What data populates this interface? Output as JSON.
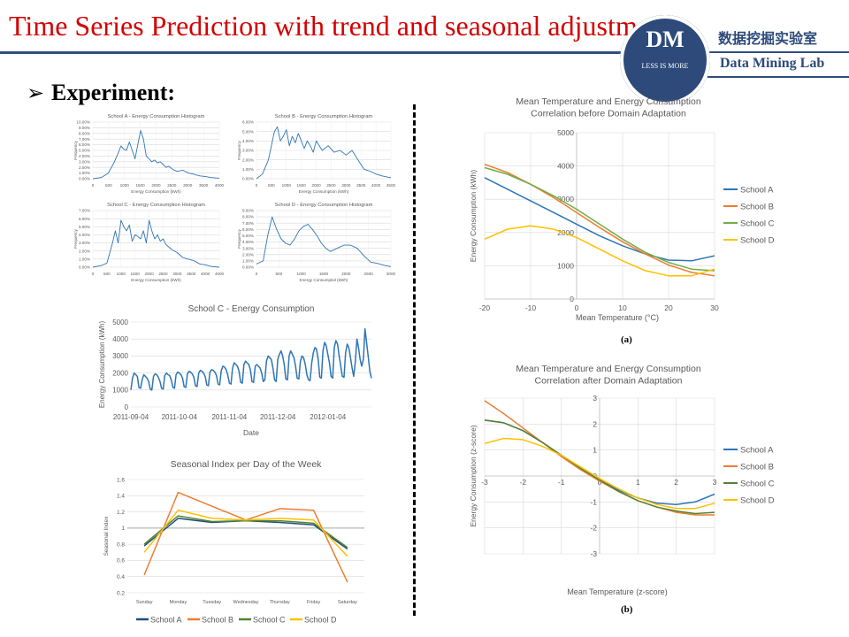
{
  "header": {
    "title": "Time Series Prediction with trend and seasonal adjustment",
    "logo_text": "DM",
    "logo_tagline": "LESS IS MORE",
    "lab_name_cn": "数据挖掘实验室",
    "lab_name_en": "Data Mining Lab"
  },
  "bullet": {
    "arrow": "➢",
    "label": "Experiment:"
  },
  "captions": {
    "a": "(a)",
    "b": "(b)"
  },
  "colors": {
    "title": "#d40000",
    "navy": "#2d4a7a",
    "blue": "#2e75b6",
    "orange": "#ed7d31",
    "green": "#70ad47",
    "yellow": "#ffc000",
    "darkblue": "#1f4e79",
    "darkgreen": "#548235"
  },
  "chart_data": [
    {
      "id": "hist-a",
      "type": "line",
      "title": "School A - Energy Consumption Histogram",
      "xlabel": "Energy Consumption (kWh)",
      "ylabel": "Frequency",
      "xlim": [
        0,
        4500
      ],
      "ylim": [
        0,
        0.1
      ],
      "x_ticks": [
        "0",
        "500",
        "1000",
        "1500",
        "2000",
        "2500",
        "3000",
        "3500",
        "4000"
      ],
      "y_ticks": [
        "0.00%",
        "1.00%",
        "2.00%",
        "3.00%",
        "4.00%",
        "5.00%",
        "6.00%",
        "7.00%",
        "8.00%",
        "9.00%",
        "10.00%"
      ],
      "x": [
        0,
        300,
        550,
        750,
        900,
        1000,
        1100,
        1200,
        1300,
        1400,
        1500,
        1600,
        1700,
        1800,
        1900,
        2000,
        2100,
        2200,
        2300,
        2400,
        2500,
        2600,
        2700,
        2800,
        2900,
        3000,
        3200,
        3400,
        3600,
        3800,
        4000,
        4200,
        4500
      ],
      "series": [
        {
          "values": [
            0,
            0.002,
            0.01,
            0.028,
            0.045,
            0.058,
            0.052,
            0.05,
            0.065,
            0.05,
            0.035,
            0.06,
            0.085,
            0.07,
            0.04,
            0.035,
            0.03,
            0.033,
            0.028,
            0.03,
            0.025,
            0.02,
            0.022,
            0.018,
            0.015,
            0.013,
            0.015,
            0.01,
            0.008,
            0.005,
            0.004,
            0.002,
            0.001
          ],
          "color": "#2e75b6"
        }
      ]
    },
    {
      "id": "hist-b",
      "type": "line",
      "title": "School B - Energy Consumption Histogram",
      "xlabel": "Energy Consumption (kWh)",
      "ylabel": "Frequency",
      "xlim": [
        0,
        4500
      ],
      "ylim": [
        0,
        0.06
      ],
      "x_ticks": [
        "0",
        "500",
        "1000",
        "1500",
        "2000",
        "2500",
        "3000",
        "3500",
        "4000",
        "4500"
      ],
      "y_ticks": [
        "0.00%",
        "1.00%",
        "2.00%",
        "3.00%",
        "4.00%",
        "5.00%",
        "6.00%"
      ],
      "x": [
        0,
        200,
        400,
        500,
        600,
        700,
        800,
        900,
        1000,
        1100,
        1200,
        1300,
        1400,
        1500,
        1600,
        1700,
        1800,
        1900,
        2000,
        2200,
        2400,
        2600,
        2800,
        3000,
        3200,
        3400,
        3600,
        3800,
        4000,
        4200,
        4500
      ],
      "series": [
        {
          "values": [
            0,
            0.005,
            0.02,
            0.035,
            0.05,
            0.055,
            0.04,
            0.045,
            0.052,
            0.035,
            0.045,
            0.038,
            0.048,
            0.04,
            0.032,
            0.04,
            0.035,
            0.028,
            0.04,
            0.03,
            0.035,
            0.028,
            0.03,
            0.025,
            0.03,
            0.02,
            0.01,
            0.008,
            0.005,
            0.003,
            0.001
          ],
          "color": "#2e75b6"
        }
      ]
    },
    {
      "id": "hist-c",
      "type": "line",
      "title": "School C - Energy Consumption Histogram",
      "xlabel": "Energy Consumption (kWh)",
      "ylabel": "Frequency",
      "xlim": [
        0,
        4500
      ],
      "ylim": [
        0,
        0.07
      ],
      "x_ticks": [
        "0",
        "500",
        "1000",
        "1500",
        "2000",
        "2500",
        "3000",
        "3500",
        "4000",
        "4500"
      ],
      "y_ticks": [
        "0.00%",
        "1.00%",
        "2.00%",
        "3.00%",
        "4.00%",
        "5.00%",
        "6.00%",
        "7.00%"
      ],
      "x": [
        0,
        300,
        500,
        700,
        800,
        900,
        1000,
        1100,
        1200,
        1300,
        1400,
        1500,
        1600,
        1700,
        1800,
        1900,
        2000,
        2100,
        2200,
        2300,
        2400,
        2500,
        2600,
        2800,
        3000,
        3200,
        3400,
        3600,
        3800,
        4000,
        4200,
        4500
      ],
      "series": [
        {
          "values": [
            0,
            0.002,
            0.005,
            0.03,
            0.045,
            0.03,
            0.058,
            0.05,
            0.045,
            0.052,
            0.032,
            0.04,
            0.038,
            0.035,
            0.045,
            0.03,
            0.058,
            0.045,
            0.035,
            0.04,
            0.032,
            0.035,
            0.028,
            0.022,
            0.018,
            0.012,
            0.01,
            0.008,
            0.004,
            0.003,
            0.001,
            0.0
          ],
          "color": "#2e75b6"
        }
      ]
    },
    {
      "id": "hist-d",
      "type": "line",
      "title": "School D - Energy Consumption Histogram",
      "xlabel": "Energy Consumptiol (kWh)",
      "ylabel": "Frequency",
      "xlim": [
        0,
        3000
      ],
      "ylim": [
        0,
        0.09
      ],
      "x_ticks": [
        "0",
        "500",
        "1000",
        "1500",
        "2000",
        "2500",
        "3000"
      ],
      "y_ticks": [
        "0.00%",
        "1.00%",
        "2.00%",
        "3.00%",
        "4.00%",
        "5.00%",
        "6.00%",
        "7.00%",
        "8.00%",
        "9.00%"
      ],
      "x": [
        0,
        150,
        250,
        350,
        450,
        550,
        650,
        750,
        850,
        950,
        1050,
        1150,
        1250,
        1350,
        1450,
        1550,
        1650,
        1800,
        1950,
        2100,
        2250,
        2400,
        2550,
        2700,
        2850,
        3000
      ],
      "series": [
        {
          "values": [
            0.005,
            0.01,
            0.05,
            0.08,
            0.06,
            0.045,
            0.038,
            0.035,
            0.045,
            0.058,
            0.065,
            0.068,
            0.06,
            0.05,
            0.038,
            0.03,
            0.025,
            0.03,
            0.035,
            0.035,
            0.03,
            0.018,
            0.008,
            0.006,
            0.003,
            0.001
          ],
          "color": "#2e75b6"
        }
      ]
    },
    {
      "id": "ts-c",
      "type": "line",
      "title": "School C - Energy Consumption",
      "xlabel": "Date",
      "ylabel": "Energy Consumption (kWh)",
      "ylim": [
        0,
        5000
      ],
      "y_ticks": [
        "0",
        "1000",
        "2000",
        "3000",
        "4000",
        "5000"
      ],
      "x_ticks": [
        "2011-09-04",
        "2011-10-04",
        "2011-11-04",
        "2011-12-04",
        "2012-01-04"
      ],
      "x_start": "2011-09-04",
      "series": [
        {
          "name": "",
          "color": "#2e75b6",
          "values": [
            1000,
            1700,
            2000,
            1900,
            1800,
            1150,
            1100,
            1600,
            1900,
            1800,
            1700,
            1500,
            1050,
            1000,
            1800,
            1950,
            1900,
            1750,
            1500,
            1100,
            1050,
            1850,
            2000,
            1900,
            1850,
            1600,
            1150,
            1100,
            1900,
            2050,
            2000,
            1900,
            1700,
            1200,
            1150,
            1950,
            2100,
            2050,
            1950,
            1750,
            1250,
            1200,
            2000,
            2150,
            2100,
            2000,
            1800,
            1300,
            1250,
            2050,
            2200,
            2150,
            2050,
            1850,
            1350,
            1300,
            2150,
            2400,
            2350,
            2200,
            1900,
            1400,
            1350,
            2300,
            2600,
            2500,
            2400,
            2100,
            1450,
            1400,
            2500,
            2700,
            2600,
            2500,
            2200,
            1500,
            1450,
            2400,
            2500,
            2400,
            2300,
            2000,
            1500,
            1600,
            2700,
            3000,
            2900,
            2800,
            2300,
            1600,
            1500,
            2800,
            3100,
            3300,
            3000,
            2500,
            1650,
            1600,
            3000,
            3300,
            3100,
            2900,
            2400,
            1700,
            1650,
            2700,
            3000,
            2900,
            2500,
            1900,
            1600,
            1550,
            2600,
            3200,
            3500,
            3400,
            2800,
            1750,
            1700,
            3300,
            3800,
            3600,
            3100,
            2600,
            1800,
            1700,
            3500,
            3900,
            3700,
            3000,
            2400,
            1800,
            1750,
            3200,
            3700,
            3500,
            2900,
            2300,
            1800,
            2600,
            4000,
            3500,
            2800,
            2400,
            2800,
            4600,
            3800,
            3000,
            2100,
            1700
          ]
        }
      ]
    },
    {
      "id": "seasonal",
      "type": "line",
      "title": "Seasonal Index per Day of the Week",
      "xlabel": "",
      "ylabel": "Seasonal Index",
      "categories": [
        "Sunday",
        "Monday",
        "Tuesday",
        "Wednesday",
        "Thursday",
        "Friday",
        "Saturday"
      ],
      "ylim": [
        0.2,
        1.6
      ],
      "y_ticks": [
        "0.2",
        "0.4",
        "0.6",
        "0.8",
        "1",
        "1.2",
        "1.4",
        "1.6"
      ],
      "reference_line": 1,
      "series": [
        {
          "name": "School A",
          "color": "#1f4e79",
          "values": [
            0.78,
            1.12,
            1.07,
            1.09,
            1.07,
            1.04,
            0.74
          ]
        },
        {
          "name": "School B",
          "color": "#ed7d31",
          "values": [
            0.42,
            1.44,
            1.27,
            1.1,
            1.24,
            1.22,
            0.33
          ]
        },
        {
          "name": "School C",
          "color": "#548235",
          "values": [
            0.8,
            1.15,
            1.08,
            1.09,
            1.09,
            1.06,
            0.76
          ]
        },
        {
          "name": "School D",
          "color": "#ffc000",
          "values": [
            0.7,
            1.22,
            1.12,
            1.1,
            1.12,
            1.1,
            0.65
          ]
        }
      ]
    },
    {
      "id": "corr-before",
      "type": "line",
      "title": "Mean Temperature and Energy Consumption Correlation before Domain Adaptation",
      "title_lines": [
        "Mean Temperature and Energy Consumption",
        "Correlation before Domain Adaptation"
      ],
      "xlabel": "Mean Temperature (°C)",
      "ylabel": "Energy Consumption (kWh)",
      "xlim": [
        -20,
        30
      ],
      "ylim": [
        0,
        5000
      ],
      "x_ticks": [
        "-20",
        "-10",
        "0",
        "10",
        "20",
        "30"
      ],
      "y_ticks": [
        "0",
        "1000",
        "2000",
        "3000",
        "4000",
        "5000"
      ],
      "legend": "right",
      "x": [
        -20,
        -15,
        -10,
        -5,
        0,
        5,
        10,
        15,
        20,
        25,
        30
      ],
      "series": [
        {
          "name": "School A",
          "color": "#2e75b6",
          "values": [
            3650,
            3300,
            2950,
            2600,
            2250,
            1900,
            1600,
            1350,
            1170,
            1150,
            1300
          ]
        },
        {
          "name": "School B",
          "color": "#ed7d31",
          "values": [
            4050,
            3800,
            3450,
            3050,
            2600,
            2150,
            1720,
            1350,
            1020,
            800,
            700
          ]
        },
        {
          "name": "School C",
          "color": "#70ad47",
          "values": [
            3950,
            3750,
            3450,
            3100,
            2700,
            2250,
            1800,
            1400,
            1100,
            900,
            850
          ]
        },
        {
          "name": "School D",
          "color": "#ffc000",
          "values": [
            1800,
            2100,
            2200,
            2100,
            1850,
            1500,
            1150,
            850,
            700,
            700,
            900
          ]
        }
      ]
    },
    {
      "id": "corr-after",
      "type": "line",
      "title": "Mean Temperature and Energy Consumption Correlation after Domain Adaptation",
      "title_lines": [
        "Mean Temperature and Energy Consumption",
        "Correlation after Domain Adaptation"
      ],
      "xlabel": "Mean Temperature (z-score)",
      "ylabel": "Energy Consumption (z-score)",
      "xlim": [
        -3,
        3
      ],
      "ylim": [
        -3,
        3
      ],
      "x_ticks": [
        "-3",
        "-2",
        "-1",
        "0",
        "1",
        "2",
        "3"
      ],
      "y_ticks": [
        "-3",
        "-2",
        "-1",
        "0",
        "1",
        "2",
        "3"
      ],
      "legend": "right",
      "x": [
        -3,
        -2.5,
        -2,
        -1.5,
        -1,
        -0.5,
        0,
        0.5,
        1,
        1.5,
        2,
        2.5,
        3
      ],
      "series": [
        {
          "name": "School A",
          "color": "#2e75b6",
          "values": [
            2.15,
            2.05,
            1.75,
            1.3,
            0.8,
            0.3,
            -0.15,
            -0.55,
            -0.85,
            -1.05,
            -1.1,
            -1.0,
            -0.7
          ]
        },
        {
          "name": "School B",
          "color": "#ed7d31",
          "values": [
            2.9,
            2.4,
            1.85,
            1.3,
            0.75,
            0.25,
            -0.2,
            -0.6,
            -0.95,
            -1.2,
            -1.4,
            -1.5,
            -1.5
          ]
        },
        {
          "name": "School C",
          "color": "#548235",
          "values": [
            2.15,
            2.05,
            1.75,
            1.3,
            0.8,
            0.3,
            -0.15,
            -0.6,
            -0.95,
            -1.2,
            -1.35,
            -1.45,
            -1.4
          ]
        },
        {
          "name": "School D",
          "color": "#ffc000",
          "values": [
            1.25,
            1.45,
            1.4,
            1.15,
            0.8,
            0.35,
            -0.1,
            -0.5,
            -0.85,
            -1.1,
            -1.25,
            -1.25,
            -1.05
          ]
        }
      ]
    }
  ]
}
